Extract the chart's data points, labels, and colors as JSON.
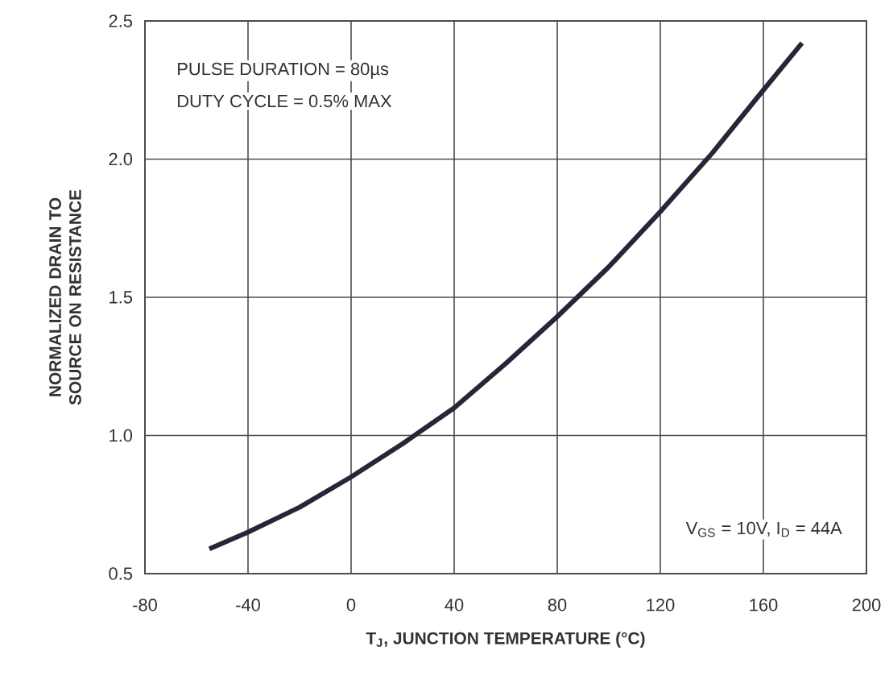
{
  "chart_data": {
    "type": "line",
    "xlabel": "T$_{J}$, JUNCTION TEMPERATURE (°C)",
    "ylabel": "NORMALIZED DRAIN TO SOURCE ON RESISTANCE",
    "annotations": [
      "PULSE DURATION = 80µs",
      "DUTY CYCLE = 0.5% MAX",
      "V$_{GS}$ = 10V, I$_{D}$ = 44A"
    ],
    "x": [
      -55,
      -40,
      -20,
      0,
      20,
      40,
      60,
      80,
      100,
      120,
      140,
      160,
      175
    ],
    "series": [
      {
        "color": "#2a2438",
        "values": [
          0.59,
          0.65,
          0.74,
          0.85,
          0.97,
          1.1,
          1.26,
          1.43,
          1.61,
          1.81,
          2.02,
          2.25,
          2.42
        ]
      }
    ],
    "xlim": [
      -80,
      200
    ],
    "xticks": [
      -80,
      -40,
      0,
      40,
      80,
      120,
      160,
      200
    ],
    "ylim": [
      0.5,
      2.5
    ],
    "yticks": [
      0.5,
      {
        "value": 1,
        "label": "1.0"
      },
      1.5,
      {
        "value": 2,
        "label": "2.0"
      },
      2.5
    ],
    "grid": true,
    "marker": "none",
    "line_style": "solid"
  }
}
